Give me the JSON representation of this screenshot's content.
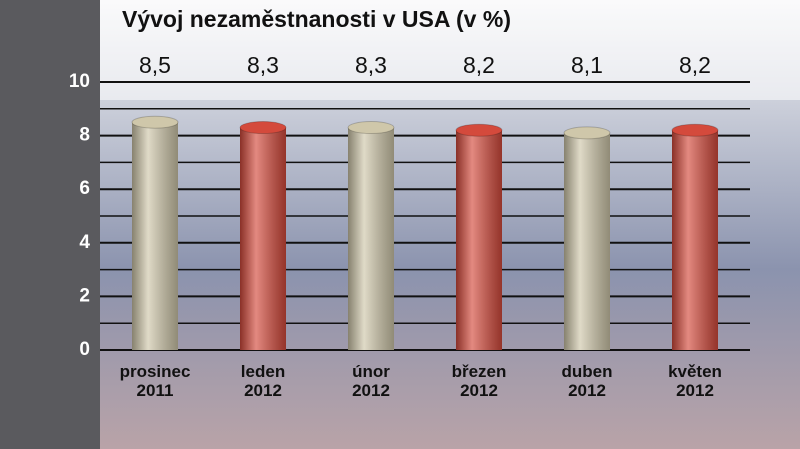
{
  "chart_data": {
    "type": "bar",
    "title": "Vývoj nezaměstnanosti v USA (v %)",
    "categories": [
      "prosinec 2011",
      "leden 2012",
      "únor 2012",
      "březen 2012",
      "duben 2012",
      "květen 2012"
    ],
    "values": [
      8.5,
      8.3,
      8.3,
      8.2,
      8.1,
      8.2
    ],
    "value_labels": [
      "8,5",
      "8,3",
      "8,3",
      "8,2",
      "8,1",
      "8,2"
    ],
    "colors": [
      "#cfc7aa",
      "#d44a3c",
      "#cfc7aa",
      "#d44a3c",
      "#cfc7aa",
      "#d44a3c"
    ],
    "ylim": [
      0,
      10
    ],
    "yticks": [
      0,
      2,
      4,
      6,
      8,
      10
    ],
    "minor_gridlines": [
      1,
      3,
      5,
      7,
      9
    ],
    "grid": true
  }
}
